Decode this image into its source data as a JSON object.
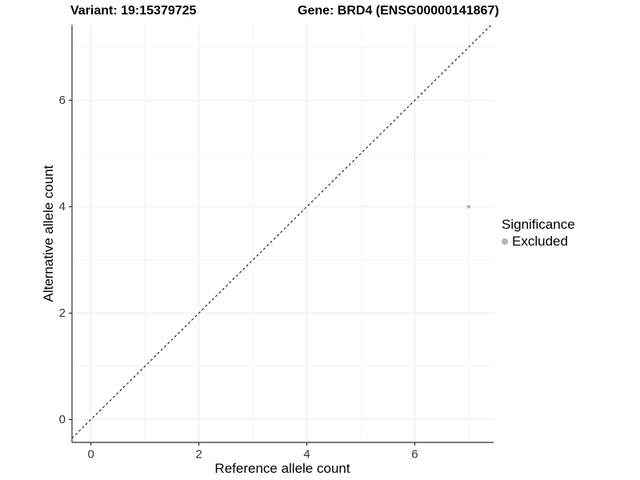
{
  "header": {
    "title_left": "Variant: 19:15379725",
    "title_right": "Gene: BRD4 (ENSG00000141867)"
  },
  "chart_data": {
    "type": "scatter",
    "title_left": "Variant: 19:15379725",
    "title_right": "Gene: BRD4 (ENSG00000141867)",
    "xlabel": "Reference allele count",
    "ylabel": "Alternative allele count",
    "xlim": [
      -0.35,
      7.46
    ],
    "ylim": [
      -0.43,
      7.42
    ],
    "xticks": [
      0,
      2,
      4,
      6
    ],
    "yticks": [
      0,
      2,
      4,
      6
    ],
    "xminor": [
      1,
      3,
      5,
      7
    ],
    "yminor": [
      1,
      3,
      5,
      7
    ],
    "grid": true,
    "legend_position": "right",
    "identity_line": {
      "slope": 1,
      "intercept": 0,
      "style": "dashed",
      "color": "#000000"
    },
    "series": [
      {
        "name": "Excluded",
        "color": "#b5b5b5",
        "points": [
          {
            "x": 7,
            "y": 4
          }
        ]
      }
    ],
    "legend": {
      "title": "Significance",
      "items": [
        {
          "label": "Excluded",
          "color": "#b5b5b5"
        }
      ]
    },
    "colors": {
      "grid_major": "#e9e9e9",
      "grid_minor": "#f4f4f4",
      "axis_line": "#333333",
      "tick_label": "#333333",
      "point": "#b5b5b5"
    }
  }
}
